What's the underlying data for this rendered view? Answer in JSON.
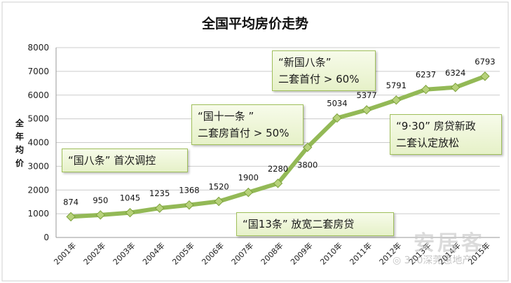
{
  "chart_data": {
    "type": "line",
    "title": "全国平均房价走势",
    "ylabel": "全年均价",
    "categories": [
      "2001年",
      "2002年",
      "2003年",
      "2004年",
      "2005年",
      "2006年",
      "2007年",
      "2008年",
      "2009年",
      "2010年",
      "2011年",
      "2012年",
      "2013年",
      "2014年",
      "2015年"
    ],
    "values": [
      874,
      950,
      1045,
      1235,
      1368,
      1520,
      1900,
      2280,
      3800,
      5034,
      5377,
      5791,
      6237,
      6324,
      6793
    ],
    "ylim": [
      0,
      8000
    ],
    "yticks": [
      0,
      1000,
      2000,
      3000,
      4000,
      5000,
      6000,
      7000,
      8000
    ],
    "grid": true,
    "line_color": "#93b956",
    "marker_color": "#b7d27b",
    "annotations": [
      {
        "lines": [
          "“国八条” 首次调控"
        ]
      },
      {
        "lines": [
          "“国十一条 ”",
          "二套房首付 > 50%"
        ]
      },
      {
        "lines": [
          "“新国八条”",
          "二套首付 > 60%"
        ]
      },
      {
        "lines": [
          "“9·30” 房贷新政",
          "二套认定放松"
        ]
      },
      {
        "lines": [
          "“国13条” 放宽二套房贷"
        ]
      }
    ]
  },
  "watermark": {
    "brand": "安居客",
    "account": "360深莞惠地产"
  }
}
